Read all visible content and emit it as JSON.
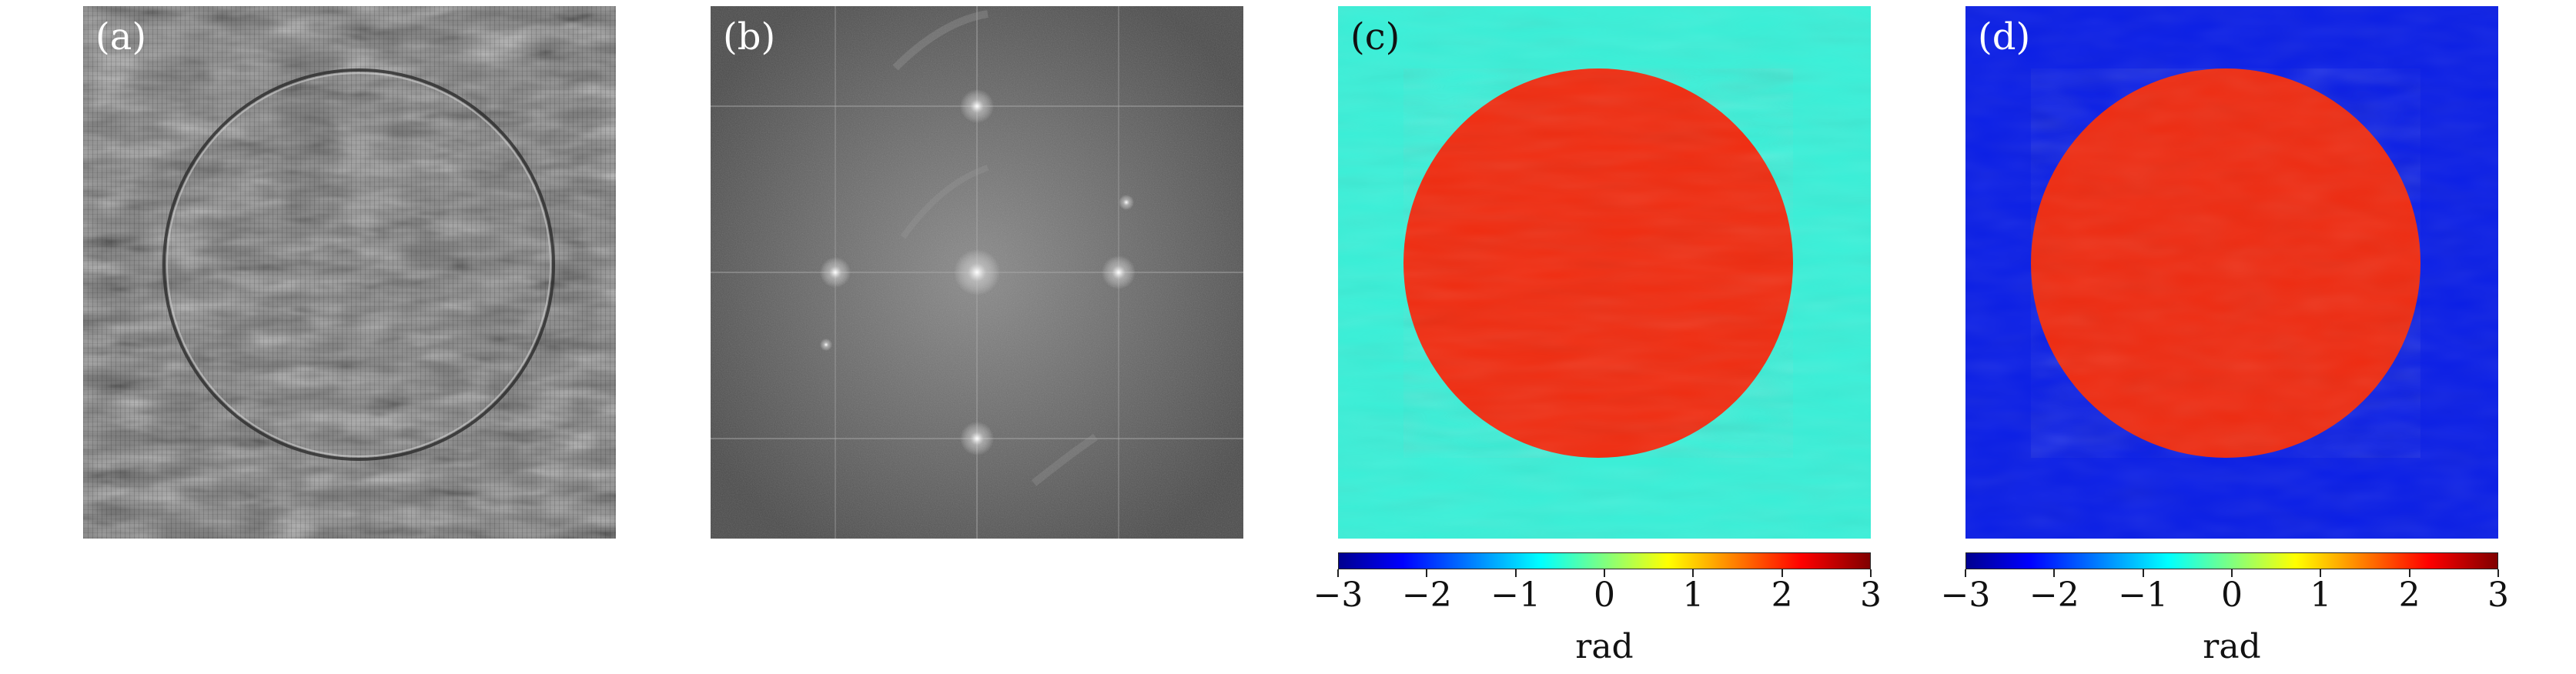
{
  "panels": [
    {
      "label": "(a)",
      "content": "hologram-image"
    },
    {
      "label": "(b)",
      "content": "fourier-spectrum-image"
    },
    {
      "label": "(c)",
      "content": "wrapped-phase-map"
    },
    {
      "label": "(d)",
      "content": "unwrapped-phase-map"
    }
  ],
  "colorbar": {
    "ticks": [
      "−3",
      "−2",
      "−1",
      "0",
      "1",
      "2",
      "3"
    ],
    "values": [
      -3,
      -2,
      -1,
      0,
      1,
      2,
      3
    ],
    "unit": "rad",
    "colormap": "jet",
    "colors": {
      "dark_blue": "#00008f",
      "blue": "#0000ff",
      "cyan": "#00ffff",
      "yellow": "#ffff00",
      "red": "#ff0000",
      "dark_red": "#800000"
    }
  },
  "colors": {
    "panel_c_background": "#38f0d8",
    "panel_c_disk": "#f02c10",
    "panel_d_background": "#0a1ee6",
    "panel_d_disk": "#ee2c12"
  }
}
